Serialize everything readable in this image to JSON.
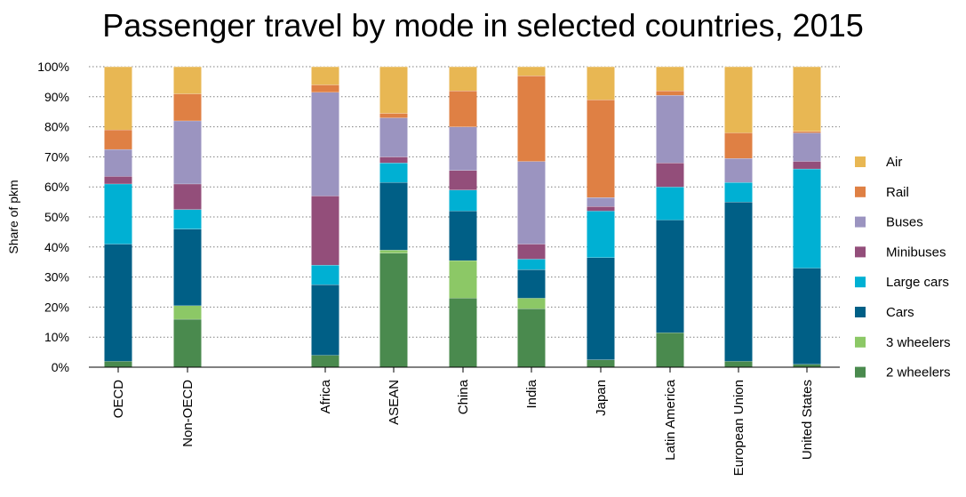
{
  "chart_data": {
    "type": "bar",
    "stacked": true,
    "title": "Passenger travel by mode in selected countries, 2015",
    "ylabel": "Share of pkm",
    "xlabel": "",
    "ylim": [
      0,
      100
    ],
    "yticks": [
      "0%",
      "10%",
      "20%",
      "30%",
      "40%",
      "50%",
      "60%",
      "70%",
      "80%",
      "90%",
      "100%"
    ],
    "grid": "horizontal-dotted",
    "legend_position": "right",
    "categories": [
      "OECD",
      "Non-OECD",
      "Africa",
      "ASEAN",
      "China",
      "India",
      "Japan",
      "Latin America",
      "European Union",
      "United States"
    ],
    "series": [
      {
        "name": "2 wheelers",
        "color": "#4a8a4e",
        "values": [
          2,
          16,
          4,
          38,
          23,
          19.5,
          2.5,
          11.5,
          2,
          1
        ]
      },
      {
        "name": "3 wheelers",
        "color": "#8cc866",
        "values": [
          0,
          4.5,
          0,
          1,
          12.5,
          3.5,
          0,
          0,
          0,
          0
        ]
      },
      {
        "name": "Cars",
        "color": "#005f86",
        "values": [
          39,
          25.5,
          23.5,
          22.5,
          16.5,
          9.5,
          34,
          37.5,
          53,
          32
        ]
      },
      {
        "name": "Large cars",
        "color": "#00b0d3",
        "values": [
          20,
          6.5,
          6.5,
          6.5,
          7,
          3.5,
          15.5,
          11,
          6.5,
          33
        ]
      },
      {
        "name": "Minibuses",
        "color": "#934e7a",
        "values": [
          2.5,
          8.5,
          23,
          2,
          6.5,
          5,
          1.5,
          8,
          0,
          2.5
        ]
      },
      {
        "name": "Buses",
        "color": "#9b94c0",
        "values": [
          9,
          21,
          34.5,
          13,
          14.5,
          27.5,
          3,
          22.5,
          8,
          9.5
        ]
      },
      {
        "name": "Rail",
        "color": "#df8044",
        "values": [
          6.5,
          9,
          2.5,
          1.5,
          12,
          28.5,
          32.5,
          1.5,
          8.5,
          0.5
        ]
      },
      {
        "name": "Air",
        "color": "#e8b753",
        "values": [
          21,
          9,
          6,
          15.5,
          8,
          3,
          11,
          8,
          22,
          21.5
        ]
      }
    ]
  }
}
